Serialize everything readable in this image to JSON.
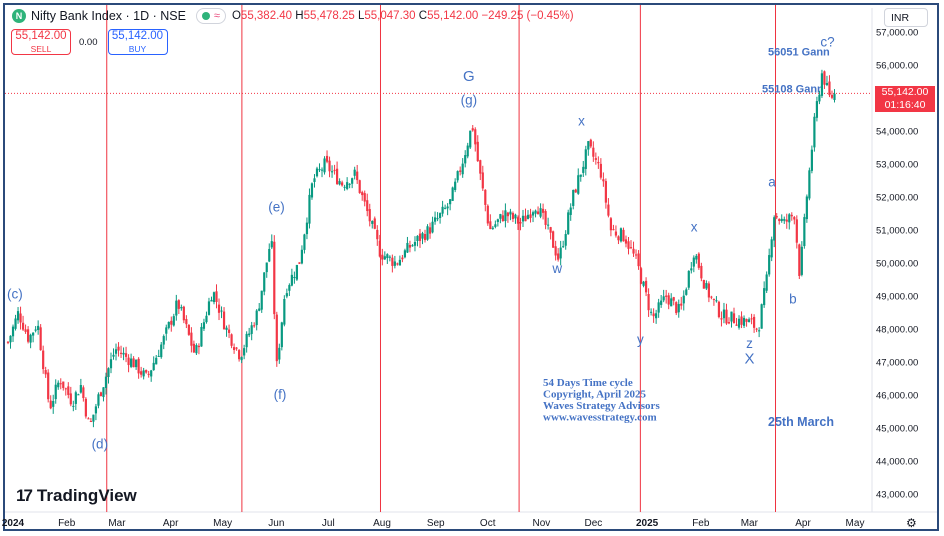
{
  "header": {
    "symbol_icon": "nifty-bank-logo",
    "symbol_title": "Nifty Bank Index · 1D · NSE",
    "ohlc": {
      "o": "55,382.40",
      "h": "55,478.25",
      "l": "55,047.30",
      "c": "55,142.00",
      "change": "−249.25 (−0.45%)"
    },
    "ohlc_keys": {
      "o": "O",
      "h": "H",
      "l": "L",
      "c": "C"
    },
    "wave_icon": "≈"
  },
  "trade": {
    "sell_price": "55,142.00",
    "sell_label": "SELL",
    "spread": "0.00",
    "buy_price": "55,142.00",
    "buy_label": "BUY"
  },
  "currency": "INR",
  "price_tag": {
    "price": "55,142.00",
    "countdown": "01:16:40"
  },
  "brand": {
    "logo_mark": "17",
    "name": "TradingView"
  },
  "colors": {
    "up": "#089981",
    "down": "#f23645",
    "annotation": "#4472c4",
    "cycle_line": "#ef3340"
  },
  "chart_data": {
    "type": "candlestick",
    "y_ticks": [
      43000,
      44000,
      45000,
      46000,
      47000,
      48000,
      49000,
      50000,
      51000,
      52000,
      53000,
      54000,
      55000,
      56000,
      57000
    ],
    "y_tick_labels": [
      "43,000.00",
      "44,000.00",
      "45,000.00",
      "46,000.00",
      "47,000.00",
      "48,000.00",
      "49,000.00",
      "50,000.00",
      "51,000.00",
      "52,000.00",
      "53,000.00",
      "54,000.00",
      "55,000.00",
      "56,000.00",
      "57,000.00"
    ],
    "ylim": [
      42500,
      57600
    ],
    "x_labels": [
      {
        "label": "2024",
        "day": 0
      },
      {
        "label": "Feb",
        "day": 31
      },
      {
        "label": "Mar",
        "day": 60
      },
      {
        "label": "Apr",
        "day": 91
      },
      {
        "label": "May",
        "day": 121
      },
      {
        "label": "Jun",
        "day": 152
      },
      {
        "label": "Jul",
        "day": 182
      },
      {
        "label": "Aug",
        "day": 213
      },
      {
        "label": "Sep",
        "day": 244
      },
      {
        "label": "Oct",
        "day": 274
      },
      {
        "label": "Nov",
        "day": 305
      },
      {
        "label": "Dec",
        "day": 335
      },
      {
        "label": "2025",
        "day": 366
      },
      {
        "label": "Feb",
        "day": 397
      },
      {
        "label": "Mar",
        "day": 425
      },
      {
        "label": "Apr",
        "day": 456
      },
      {
        "label": "May",
        "day": 486
      }
    ],
    "last_price": 55142,
    "close_path": [
      {
        "day": 0,
        "close": 47600
      },
      {
        "day": 6,
        "close": 48500
      },
      {
        "day": 12,
        "close": 47700
      },
      {
        "day": 17,
        "close": 48200
      },
      {
        "day": 24,
        "close": 45600
      },
      {
        "day": 30,
        "close": 46500
      },
      {
        "day": 37,
        "close": 45800
      },
      {
        "day": 42,
        "close": 46300
      },
      {
        "day": 47,
        "close": 45000
      },
      {
        "day": 52,
        "close": 45900
      },
      {
        "day": 62,
        "close": 47400
      },
      {
        "day": 72,
        "close": 47000
      },
      {
        "day": 80,
        "close": 46500
      },
      {
        "day": 90,
        "close": 47700
      },
      {
        "day": 98,
        "close": 48800
      },
      {
        "day": 108,
        "close": 47200
      },
      {
        "day": 118,
        "close": 49200
      },
      {
        "day": 126,
        "close": 48000
      },
      {
        "day": 134,
        "close": 47200
      },
      {
        "day": 144,
        "close": 48500
      },
      {
        "day": 152,
        "close": 50800
      },
      {
        "day": 155,
        "close": 46800
      },
      {
        "day": 160,
        "close": 49200
      },
      {
        "day": 168,
        "close": 50000
      },
      {
        "day": 176,
        "close": 52500
      },
      {
        "day": 183,
        "close": 53000
      },
      {
        "day": 193,
        "close": 52400
      },
      {
        "day": 200,
        "close": 52700
      },
      {
        "day": 207,
        "close": 51600
      },
      {
        "day": 215,
        "close": 50300
      },
      {
        "day": 224,
        "close": 50000
      },
      {
        "day": 232,
        "close": 50500
      },
      {
        "day": 243,
        "close": 51000
      },
      {
        "day": 255,
        "close": 51800
      },
      {
        "day": 263,
        "close": 53200
      },
      {
        "day": 268,
        "close": 54200
      },
      {
        "day": 272,
        "close": 52800
      },
      {
        "day": 278,
        "close": 51000
      },
      {
        "day": 287,
        "close": 51500
      },
      {
        "day": 296,
        "close": 51200
      },
      {
        "day": 305,
        "close": 51800
      },
      {
        "day": 313,
        "close": 50800
      },
      {
        "day": 318,
        "close": 50100
      },
      {
        "day": 326,
        "close": 52000
      },
      {
        "day": 335,
        "close": 53500
      },
      {
        "day": 342,
        "close": 52800
      },
      {
        "day": 348,
        "close": 51000
      },
      {
        "day": 356,
        "close": 50800
      },
      {
        "day": 363,
        "close": 50000
      },
      {
        "day": 372,
        "close": 48300
      },
      {
        "day": 380,
        "close": 49000
      },
      {
        "day": 388,
        "close": 48500
      },
      {
        "day": 396,
        "close": 50400
      },
      {
        "day": 403,
        "close": 49200
      },
      {
        "day": 412,
        "close": 48400
      },
      {
        "day": 420,
        "close": 48300
      },
      {
        "day": 428,
        "close": 48200
      },
      {
        "day": 433,
        "close": 48000
      },
      {
        "day": 438,
        "close": 49500
      },
      {
        "day": 442,
        "close": 51500
      },
      {
        "day": 448,
        "close": 51200
      },
      {
        "day": 454,
        "close": 51500
      },
      {
        "day": 457,
        "close": 49600
      },
      {
        "day": 461,
        "close": 52000
      },
      {
        "day": 466,
        "close": 54500
      },
      {
        "day": 470,
        "close": 55800
      },
      {
        "day": 474,
        "close": 55000
      },
      {
        "day": 478,
        "close": 55142
      }
    ],
    "horizontal_levels": [
      {
        "label": "56051 Gann",
        "price": 56051
      },
      {
        "label": "55108 Gann",
        "price": 55108
      }
    ],
    "cycle_lines_days": [
      57,
      135,
      215,
      295,
      365,
      443
    ],
    "wave_labels": [
      {
        "text": "(c)",
        "day": 4,
        "price": 48920
      },
      {
        "text": "(d)",
        "day": 53,
        "price": 44380
      },
      {
        "text": "(e)",
        "day": 155,
        "price": 51560
      },
      {
        "text": "(f)",
        "day": 157,
        "price": 45880
      },
      {
        "text": "G",
        "day": 266,
        "price": 55520
      },
      {
        "text": "(g)",
        "day": 266,
        "price": 54800
      },
      {
        "text": "x",
        "day": 331,
        "price": 54160
      },
      {
        "text": "w",
        "day": 317,
        "price": 49700
      },
      {
        "text": "y",
        "day": 365,
        "price": 47550
      },
      {
        "text": "x",
        "day": 396,
        "price": 50960
      },
      {
        "text": "z",
        "day": 428,
        "price": 47430
      },
      {
        "text": "X",
        "day": 428,
        "price": 46950
      },
      {
        "text": "a",
        "day": 441,
        "price": 52320
      },
      {
        "text": "b",
        "day": 453,
        "price": 48780
      },
      {
        "text": "c?",
        "day": 473,
        "price": 56560
      }
    ],
    "annotations": [
      "54 Days Time cycle",
      "Copyright, April 2025",
      "Waves Strategy Advisors",
      "www.wavesstrategy.com"
    ],
    "date_annotation": "25th March"
  }
}
